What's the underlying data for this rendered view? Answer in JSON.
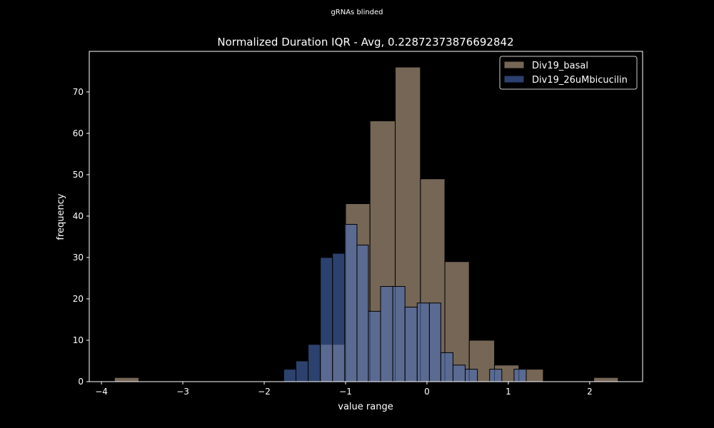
{
  "figure": {
    "suptitle": "gRNAs blinded"
  },
  "chart_data": {
    "type": "bar",
    "title": "Normalized Duration IQR - Avg, 0.22872373876692842",
    "xlabel": "value range",
    "ylabel": "frequency",
    "xlim": [
      -4.15,
      2.65
    ],
    "ylim": [
      0,
      79.8
    ],
    "xticks": [
      -4,
      -3,
      -2,
      -1,
      0,
      1,
      2
    ],
    "yticks": [
      0,
      10,
      20,
      30,
      40,
      50,
      60,
      70
    ],
    "legend_position": "upper right",
    "grid": false,
    "series": [
      {
        "name": "Div19_basal",
        "color": "#b39d84",
        "opacity": 0.65,
        "bins": [
          {
            "x0": -3.84,
            "x1": -3.54,
            "value": 1
          },
          {
            "x0": -1.31,
            "x1": -1.0,
            "value": 9
          },
          {
            "x0": -1.0,
            "x1": -0.7,
            "value": 43
          },
          {
            "x0": -0.7,
            "x1": -0.39,
            "value": 63
          },
          {
            "x0": -0.39,
            "x1": -0.08,
            "value": 76
          },
          {
            "x0": -0.08,
            "x1": 0.22,
            "value": 49
          },
          {
            "x0": 0.22,
            "x1": 0.52,
            "value": 29
          },
          {
            "x0": 0.52,
            "x1": 0.83,
            "value": 10
          },
          {
            "x0": 0.83,
            "x1": 1.13,
            "value": 4
          },
          {
            "x0": 1.13,
            "x1": 1.43,
            "value": 3
          },
          {
            "x0": 2.05,
            "x1": 2.35,
            "value": 1
          }
        ]
      },
      {
        "name": "Div19_26uMbicucilin",
        "color": "#4a6db8",
        "opacity": 0.6,
        "bins": [
          {
            "x0": -1.76,
            "x1": -1.61,
            "value": 3
          },
          {
            "x0": -1.61,
            "x1": -1.46,
            "value": 5
          },
          {
            "x0": -1.46,
            "x1": -1.31,
            "value": 9
          },
          {
            "x0": -1.31,
            "x1": -1.16,
            "value": 30
          },
          {
            "x0": -1.16,
            "x1": -1.01,
            "value": 31
          },
          {
            "x0": -1.01,
            "x1": -0.86,
            "value": 38
          },
          {
            "x0": -0.86,
            "x1": -0.72,
            "value": 33
          },
          {
            "x0": -0.72,
            "x1": -0.57,
            "value": 17
          },
          {
            "x0": -0.57,
            "x1": -0.42,
            "value": 23
          },
          {
            "x0": -0.42,
            "x1": -0.27,
            "value": 23
          },
          {
            "x0": -0.27,
            "x1": -0.12,
            "value": 18
          },
          {
            "x0": -0.12,
            "x1": 0.03,
            "value": 19
          },
          {
            "x0": 0.03,
            "x1": 0.17,
            "value": 19
          },
          {
            "x0": 0.17,
            "x1": 0.32,
            "value": 7
          },
          {
            "x0": 0.32,
            "x1": 0.47,
            "value": 4
          },
          {
            "x0": 0.47,
            "x1": 0.62,
            "value": 3
          },
          {
            "x0": 0.62,
            "x1": 0.77,
            "value": 0
          },
          {
            "x0": 0.77,
            "x1": 0.92,
            "value": 3
          },
          {
            "x0": 0.92,
            "x1": 1.07,
            "value": 0
          },
          {
            "x0": 1.07,
            "x1": 1.22,
            "value": 3
          }
        ]
      }
    ]
  }
}
